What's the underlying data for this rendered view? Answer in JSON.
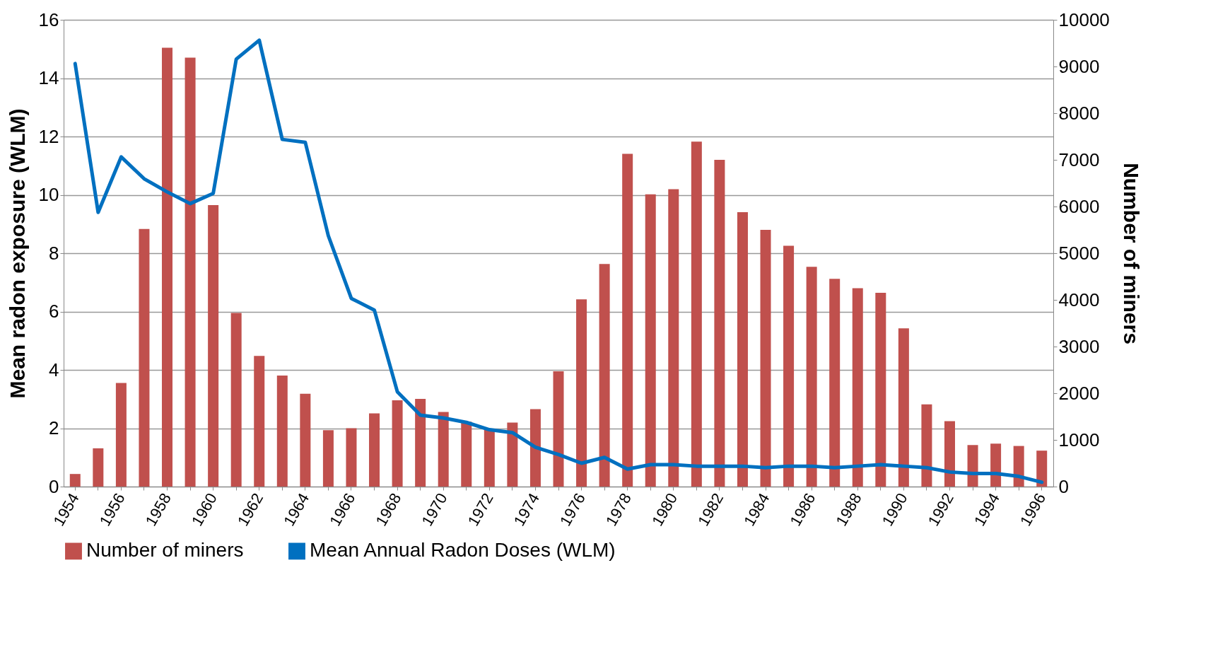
{
  "chart_data": {
    "type": "bar",
    "ylabel": "Mean radon exposure (WLM)",
    "y2label": "Number of miners",
    "categories": [
      "1954",
      null,
      "1956",
      null,
      "1958",
      null,
      "1960",
      null,
      "1962",
      null,
      "1964",
      null,
      "1966",
      null,
      "1968",
      null,
      "1970",
      null,
      "1972",
      null,
      "1974",
      null,
      "1976",
      null,
      "1978",
      null,
      "1980",
      null,
      "1982",
      null,
      "1984",
      null,
      "1986",
      null,
      "1988",
      null,
      "1990",
      null,
      "1992",
      null,
      "1994",
      null,
      "1996"
    ],
    "series": [
      {
        "name": "Number of miners",
        "axis": "y2",
        "color": "#c0504d",
        "values": [
          270,
          820,
          2220,
          5520,
          9400,
          9190,
          6030,
          3720,
          2800,
          2380,
          1990,
          1210,
          1250,
          1570,
          1850,
          1880,
          1600,
          1390,
          1240,
          1370,
          1660,
          2470,
          4010,
          4770,
          7130,
          6260,
          6370,
          7390,
          7000,
          5880,
          5500,
          5160,
          4710,
          4450,
          4250,
          4150,
          3390,
          1760,
          1400,
          890,
          920,
          870,
          770
        ]
      },
      {
        "name": "Mean Annual Radon Doses (WLM)",
        "type": "line",
        "color": "#0070c0",
        "values": [
          14.5,
          9.4,
          11.3,
          10.55,
          10.1,
          9.7,
          10.05,
          14.65,
          15.3,
          11.9,
          11.8,
          8.6,
          6.45,
          6.05,
          3.25,
          2.45,
          2.35,
          2.2,
          1.95,
          1.85,
          1.35,
          1.1,
          0.8,
          1.0,
          0.6,
          0.75,
          0.75,
          0.7,
          0.7,
          0.7,
          0.65,
          0.7,
          0.7,
          0.65,
          0.7,
          0.75,
          0.7,
          0.65,
          0.5,
          0.45,
          0.45,
          0.35,
          0.15
        ]
      }
    ],
    "ylim": [
      0,
      16
    ],
    "yticks": [
      0,
      2,
      4,
      6,
      8,
      10,
      12,
      14,
      16
    ],
    "y2lim": [
      0,
      10000
    ],
    "y2ticks": [
      0,
      1000,
      2000,
      3000,
      4000,
      5000,
      6000,
      7000,
      8000,
      9000,
      10000
    ],
    "grid": "y",
    "legend": "bottom",
    "line_style": "solid"
  }
}
